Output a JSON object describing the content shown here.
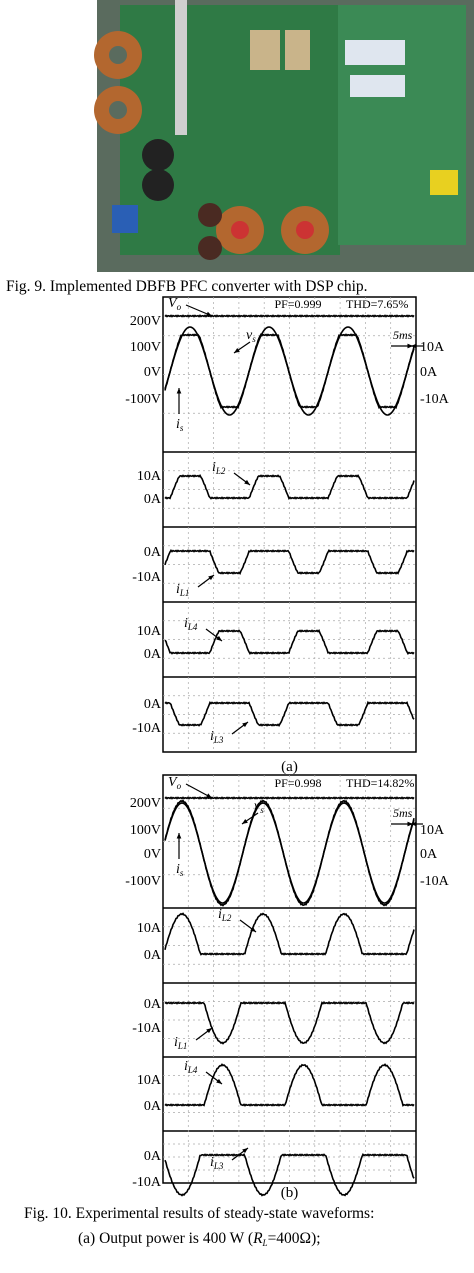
{
  "figure_9": {
    "caption": "Fig. 9. Implemented DBFB PFC converter with DSP chip."
  },
  "figure_10": {
    "plots": [
      {
        "label": "(a)",
        "pf": "PF=0.999",
        "thd": "THD=7.65%",
        "time_div": "5ms",
        "voltage_axis": [
          "200V",
          "100V",
          "0V",
          "-100V"
        ],
        "current_axis": [
          "10A",
          "0A",
          "-10A"
        ],
        "vo": {
          "main": "V",
          "sub": "o"
        },
        "vs": {
          "main": "v",
          "sub": "s"
        },
        "is": {
          "main": "i",
          "sub": "s"
        },
        "panels": [
          {
            "ticks": [
              "10A",
              "0A"
            ],
            "trace": {
              "main": "i",
              "sub": "L2"
            }
          },
          {
            "ticks": [
              "0A",
              "-10A"
            ],
            "trace": {
              "main": "i",
              "sub": "L1"
            }
          },
          {
            "ticks": [
              "10A",
              "0A"
            ],
            "trace": {
              "main": "i",
              "sub": "L4"
            }
          },
          {
            "ticks": [
              "0A",
              "-10A"
            ],
            "trace": {
              "main": "i",
              "sub": "L3"
            }
          }
        ]
      },
      {
        "label": "(b)",
        "pf": "PF=0.998",
        "thd": "THD=14.82%",
        "time_div": "5ms",
        "voltage_axis": [
          "200V",
          "100V",
          "0V",
          "-100V"
        ],
        "current_axis": [
          "10A",
          "0A",
          "-10A"
        ],
        "vo": {
          "main": "V",
          "sub": "o"
        },
        "vs": {
          "main": "v",
          "sub": "s"
        },
        "is": {
          "main": "i",
          "sub": "s"
        },
        "panels": [
          {
            "ticks": [
              "10A",
              "0A"
            ],
            "trace": {
              "main": "i",
              "sub": "L2"
            }
          },
          {
            "ticks": [
              "0A",
              "-10A"
            ],
            "trace": {
              "main": "i",
              "sub": "L1"
            }
          },
          {
            "ticks": [
              "10A",
              "0A"
            ],
            "trace": {
              "main": "i",
              "sub": "L4"
            }
          },
          {
            "ticks": [
              "0A",
              "-10A"
            ],
            "trace": {
              "main": "i",
              "sub": "L3"
            }
          }
        ]
      }
    ],
    "caption": {
      "line1": "Fig. 10. Experimental results of steady-state waveforms:",
      "line2": {
        "text": "(a) Output power is 400 W (",
        "var": "R",
        "sub": "L",
        "rest": "=400Ω);"
      }
    }
  }
}
